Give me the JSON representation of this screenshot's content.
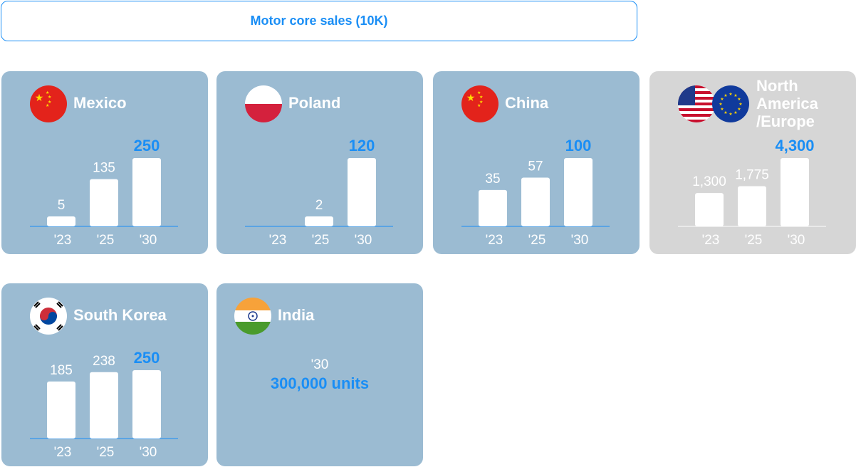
{
  "header": {
    "title": "Motor core sales (10K)"
  },
  "colors": {
    "accent": "#1a8ef5",
    "card_blue": "#9bbbd2",
    "card_gray": "#d6d6d6",
    "bar": "#ffffff",
    "baseline": "#1a8ef5"
  },
  "cards": [
    {
      "name": "Mexico",
      "flag": "china-flag-icon"
    },
    {
      "name": "Poland",
      "flag": "poland-flag-icon"
    },
    {
      "name": "China",
      "flag": "china-flag-icon"
    },
    {
      "name": "North America /Europe",
      "flags": [
        "usa-flag-icon",
        "eu-flag-icon"
      ]
    },
    {
      "name": "South Korea",
      "flag": "south-korea-flag-icon"
    },
    {
      "name": "India",
      "flag": "india-flag-icon",
      "year": "'30",
      "units": "300,000 units"
    }
  ],
  "chart_data": [
    {
      "type": "bar",
      "title": "Mexico",
      "categories": [
        "'23",
        "'25",
        "'30"
      ],
      "values": [
        5,
        135,
        250
      ],
      "value_labels": [
        "5",
        "135",
        "250"
      ],
      "highlight_index": 2
    },
    {
      "type": "bar",
      "title": "Poland",
      "categories": [
        "'23",
        "'25",
        "'30"
      ],
      "values": [
        null,
        2,
        120
      ],
      "value_labels": [
        "",
        "2",
        "120"
      ],
      "highlight_index": 2
    },
    {
      "type": "bar",
      "title": "China",
      "categories": [
        "'23",
        "'25",
        "'30"
      ],
      "values": [
        35,
        57,
        100
      ],
      "value_labels": [
        "35",
        "57",
        "100"
      ],
      "highlight_index": 2
    },
    {
      "type": "bar",
      "title": "North America /Europe",
      "categories": [
        "'23",
        "'25",
        "'30"
      ],
      "values": [
        1300,
        1775,
        4300
      ],
      "value_labels": [
        "1,300",
        "1,775",
        "4,300"
      ],
      "highlight_index": 2
    },
    {
      "type": "bar",
      "title": "South Korea",
      "categories": [
        "'23",
        "'25",
        "'30"
      ],
      "values": [
        185,
        238,
        250
      ],
      "value_labels": [
        "185",
        "238",
        "250"
      ],
      "highlight_index": 2
    }
  ]
}
